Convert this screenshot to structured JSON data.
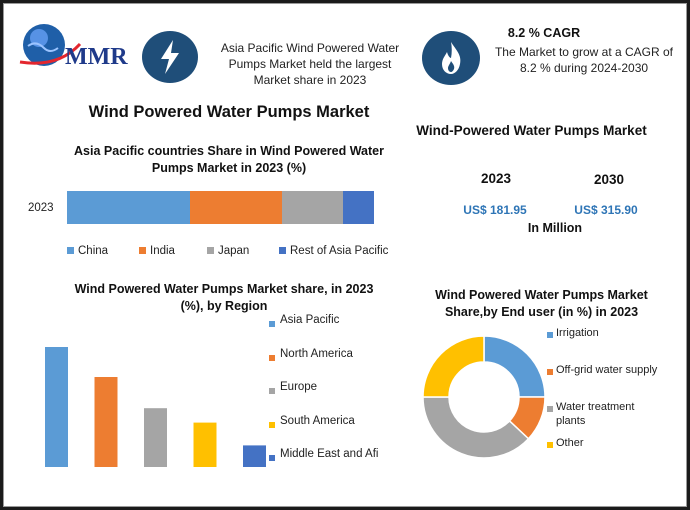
{
  "header": {
    "logo_text": "MMR",
    "logo_colors": {
      "globe": "#1f5fa8",
      "text": "#1f3a8a",
      "swoosh": "#e3262e"
    },
    "lightning_icon": "lightning-bolt-icon",
    "flame_icon": "flame-icon",
    "statement": [
      "Asia Pacific Wind Powered Water",
      "Pumps Market held the largest",
      "Market share in 2023"
    ],
    "cagr_title": "8.2 % CAGR",
    "cagr_text": [
      "The Market to grow at a CAGR of",
      "8.2 % during 2024-2030"
    ]
  },
  "main_title": "Wind Powered Water Pumps Market",
  "market_panel": {
    "title": "Wind-Powered Water Pumps Market",
    "year1": "2023",
    "year2": "2030",
    "value1": "US$ 181.95",
    "value2": "US$ 315.90",
    "unit": "In Million",
    "value_color": "#2e75b6"
  },
  "colors": {
    "blue": "#5b9bd5",
    "orange": "#ed7d31",
    "gray": "#a5a5a5",
    "yellow": "#ffc000",
    "darkblue": "#4472c4",
    "icon_circle": "#1f4e79"
  },
  "chart_data": [
    {
      "type": "bar",
      "orientation": "horizontal-stacked",
      "title": [
        "Asia Pacific countries Share in Wind Powered Water",
        "Pumps Market in 2023 (%)"
      ],
      "categories": [
        "2023"
      ],
      "series": [
        {
          "name": "China",
          "values": [
            40
          ],
          "color": "#5b9bd5"
        },
        {
          "name": "India",
          "values": [
            30
          ],
          "color": "#ed7d31"
        },
        {
          "name": "Japan",
          "values": [
            20
          ],
          "color": "#a5a5a5"
        },
        {
          "name": "Rest of Asia Pacific",
          "values": [
            10
          ],
          "color": "#4472c4"
        }
      ],
      "legend": "bottom"
    },
    {
      "type": "bar",
      "title": [
        "Wind Powered Water Pumps Market share, in 2023",
        "(%), by Region"
      ],
      "categories": [
        "Asia Pacific",
        "North America",
        "Europe",
        "South America",
        "Middle East and Afi"
      ],
      "values": [
        100,
        75,
        49,
        37,
        18
      ],
      "colors": [
        "#5b9bd5",
        "#ed7d31",
        "#a5a5a5",
        "#ffc000",
        "#4472c4"
      ],
      "legend": "right"
    },
    {
      "type": "pie",
      "style": "donut",
      "title": [
        "Wind Powered Water Pumps Market",
        "Share,by End user (in %) in 2023"
      ],
      "labels": [
        "Irrigation",
        "Off-grid water supply",
        "Water treatment plants",
        "Other"
      ],
      "values": [
        25,
        12,
        38,
        25
      ],
      "colors": [
        "#5b9bd5",
        "#ed7d31",
        "#a5a5a5",
        "#ffc000"
      ],
      "legend": "right"
    }
  ]
}
